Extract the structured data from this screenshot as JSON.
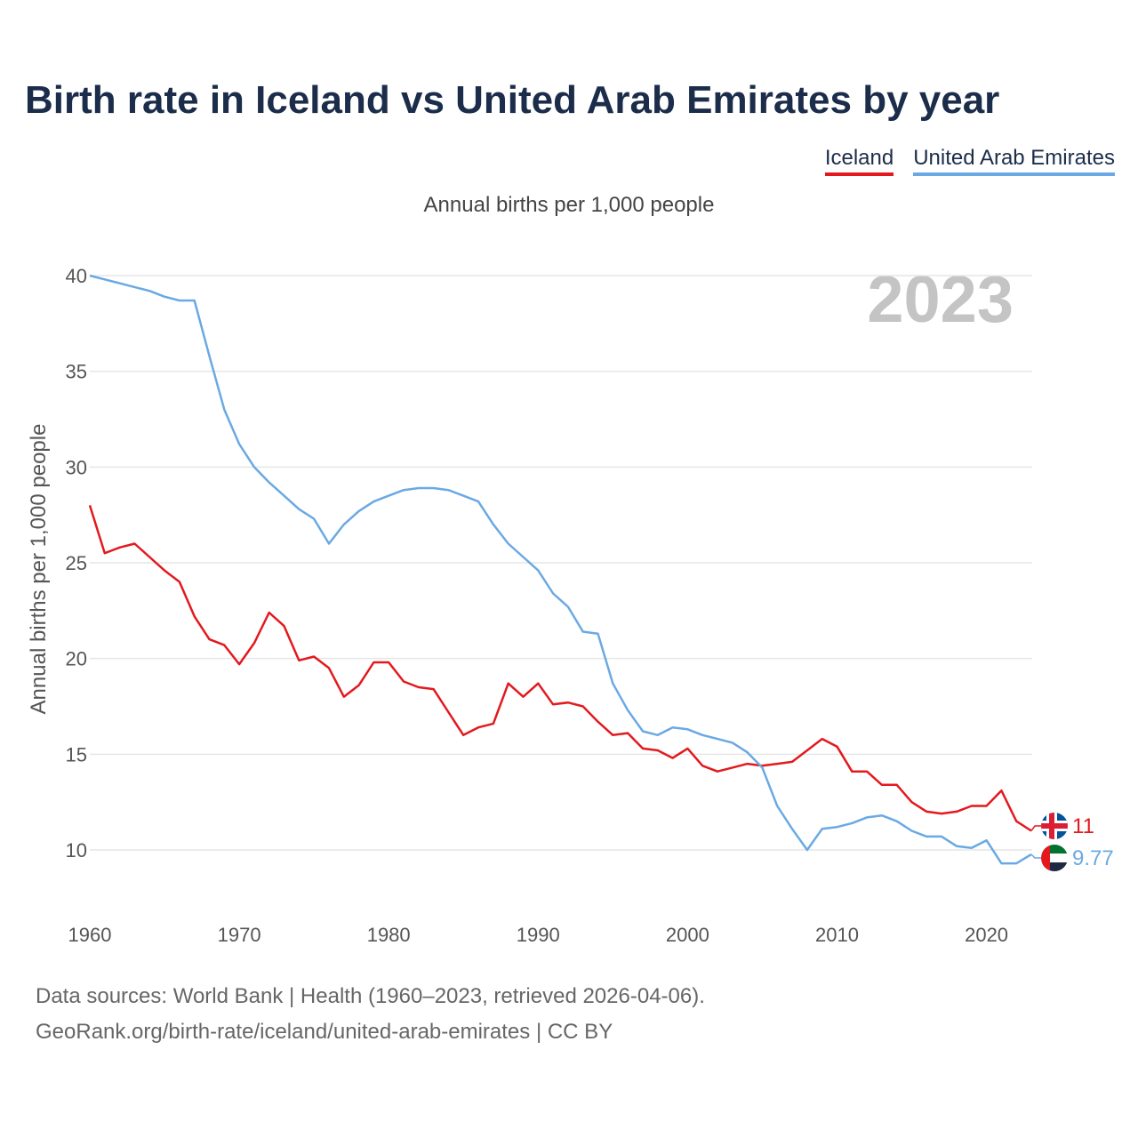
{
  "title": "Birth rate in Iceland vs United Arab Emirates by year",
  "subtitle": "Annual births per 1,000 people",
  "year_display": "2023",
  "legend": [
    {
      "name": "Iceland",
      "color": "#e3191e"
    },
    {
      "name": "United Arab Emirates",
      "color": "#6aa9e3"
    }
  ],
  "source": {
    "line1": "Data sources: World Bank | Health (1960–2023, retrieved 2026-04-06).",
    "line2": "GeoRank.org/birth-rate/iceland/united-arab-emirates | CC BY"
  },
  "chart_data": {
    "type": "line",
    "title": "Birth rate in Iceland vs United Arab Emirates by year",
    "xlabel": "",
    "ylabel": "Annual births per 1,000 people",
    "xlim": [
      1960,
      2023
    ],
    "ylim": [
      7.5,
      40
    ],
    "x_ticks": [
      1960,
      1970,
      1980,
      1990,
      2000,
      2010,
      2020
    ],
    "y_ticks": [
      10,
      15,
      20,
      25,
      30,
      35,
      40
    ],
    "grid": true,
    "legend_position": "top-right",
    "x": [
      1960,
      1961,
      1962,
      1963,
      1964,
      1965,
      1966,
      1967,
      1968,
      1969,
      1970,
      1971,
      1972,
      1973,
      1974,
      1975,
      1976,
      1977,
      1978,
      1979,
      1980,
      1981,
      1982,
      1983,
      1984,
      1985,
      1986,
      1987,
      1988,
      1989,
      1990,
      1991,
      1992,
      1993,
      1994,
      1995,
      1996,
      1997,
      1998,
      1999,
      2000,
      2001,
      2002,
      2003,
      2004,
      2005,
      2006,
      2007,
      2008,
      2009,
      2010,
      2011,
      2012,
      2013,
      2014,
      2015,
      2016,
      2017,
      2018,
      2019,
      2020,
      2021,
      2022,
      2023
    ],
    "series": [
      {
        "name": "Iceland",
        "color": "#e3191e",
        "end_label": "11",
        "values": [
          28.0,
          25.5,
          25.8,
          26.0,
          25.3,
          24.6,
          24.0,
          22.2,
          21.0,
          20.7,
          19.7,
          20.8,
          22.4,
          21.7,
          19.9,
          20.1,
          19.5,
          18.0,
          18.6,
          19.8,
          19.8,
          18.8,
          18.5,
          18.4,
          17.2,
          16.0,
          16.4,
          16.6,
          18.7,
          18.0,
          18.7,
          17.6,
          17.7,
          17.5,
          16.7,
          16.0,
          16.1,
          15.3,
          15.2,
          14.8,
          15.3,
          14.4,
          14.1,
          14.3,
          14.5,
          14.4,
          14.5,
          14.6,
          15.2,
          15.8,
          15.4,
          14.1,
          14.1,
          13.4,
          13.4,
          12.5,
          12.0,
          11.9,
          12.0,
          12.3,
          12.3,
          13.1,
          11.5,
          11.0
        ]
      },
      {
        "name": "United Arab Emirates",
        "color": "#6aa9e3",
        "end_label": "9.77",
        "values": [
          40.0,
          39.8,
          39.6,
          39.4,
          39.2,
          38.9,
          38.7,
          38.7,
          35.8,
          33.0,
          31.2,
          30.0,
          29.2,
          28.5,
          27.8,
          27.3,
          26.0,
          27.0,
          27.7,
          28.2,
          28.5,
          28.8,
          28.9,
          28.9,
          28.8,
          28.5,
          28.2,
          27.0,
          26.0,
          25.3,
          24.6,
          23.4,
          22.7,
          21.4,
          21.3,
          18.7,
          17.3,
          16.2,
          16.0,
          16.4,
          16.3,
          16.0,
          15.8,
          15.6,
          15.1,
          14.3,
          12.3,
          11.1,
          10.0,
          11.1,
          11.2,
          11.4,
          11.7,
          11.8,
          11.5,
          11.0,
          10.7,
          10.7,
          10.2,
          10.1,
          10.5,
          9.3,
          9.3,
          9.77
        ]
      }
    ]
  }
}
